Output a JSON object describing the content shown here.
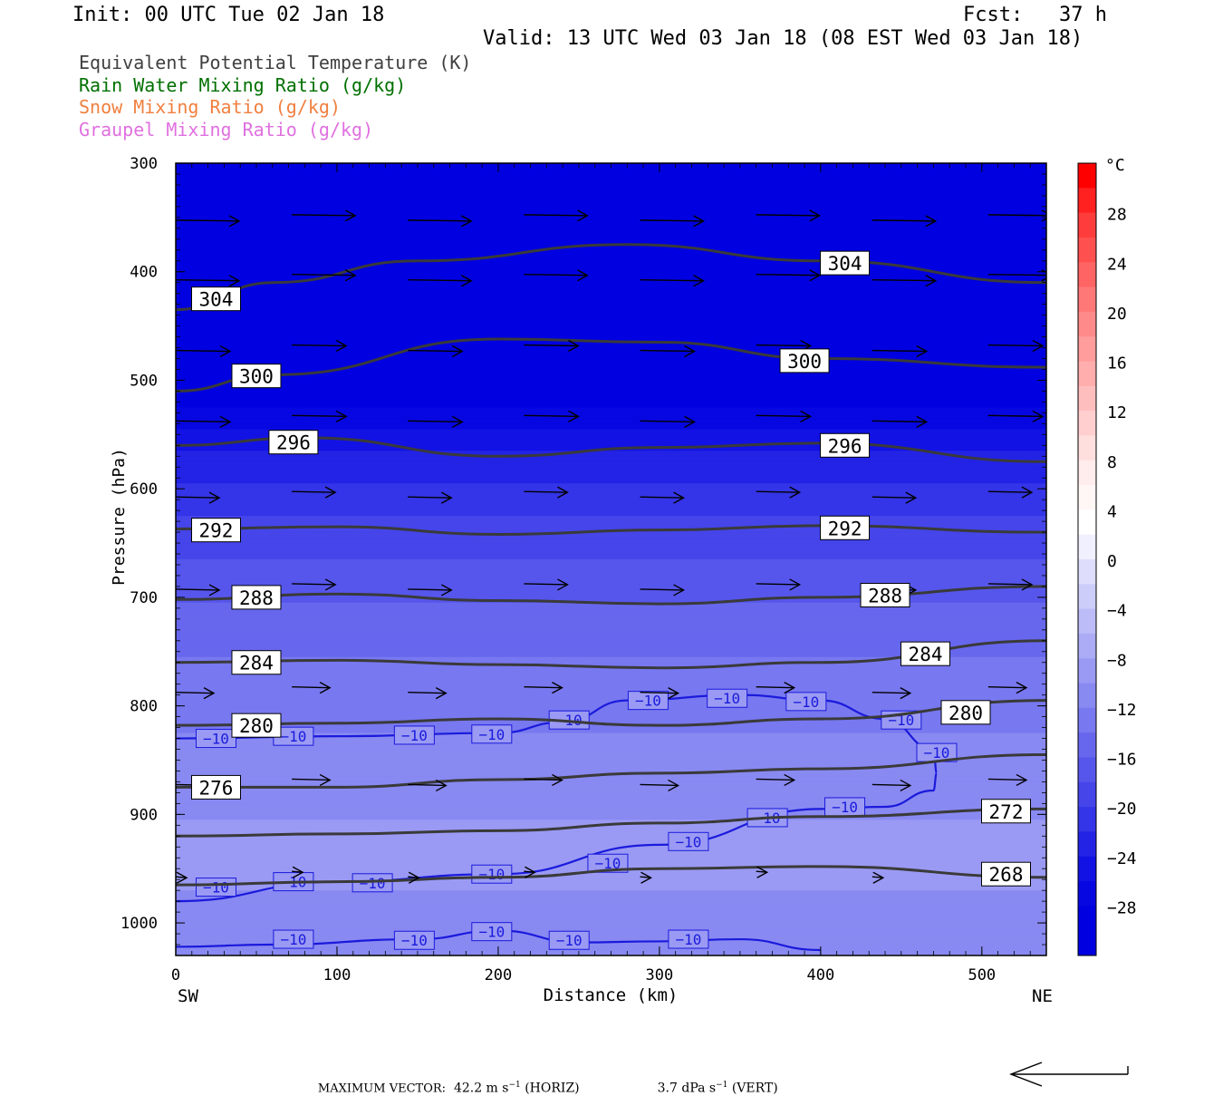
{
  "header": {
    "init": "Init: 00 UTC Tue 02 Jan 18",
    "fcst": "Fcst:   37 h",
    "valid": "Valid: 13 UTC Wed 03 Jan 18 (08 EST Wed 03 Jan 18)"
  },
  "legend": [
    {
      "label": "Equivalent Potential Temperature (K)",
      "color": "#404040"
    },
    {
      "label": "Rain Water Mixing Ratio (g/kg)",
      "color": "#007000"
    },
    {
      "label": "Snow Mixing Ratio (g/kg)",
      "color": "#f08040"
    },
    {
      "label": "Graupel Mixing Ratio (g/kg)",
      "color": "#e070e0"
    }
  ],
  "chart_data": {
    "type": "cross-section",
    "xlabel": "Distance (km)",
    "ylabel": "Pressure (hPa)",
    "xlim": [
      0,
      540
    ],
    "ylim": [
      1030,
      300
    ],
    "x_ticks": [
      "0",
      "100",
      "200",
      "300",
      "400",
      "500"
    ],
    "y_ticks": [
      "300",
      "400",
      "500",
      "600",
      "700",
      "800",
      "900",
      "1000"
    ],
    "x_tick_values": [
      0,
      100,
      200,
      300,
      400,
      500
    ],
    "y_tick_values": [
      300,
      400,
      500,
      600,
      700,
      800,
      900,
      1000
    ],
    "endpoint_left": "SW",
    "endpoint_right": "NE",
    "colorbar": {
      "unit": "°C",
      "tick_labels": [
        "28",
        "24",
        "20",
        "16",
        "12",
        "8",
        "4",
        "0",
        "−4",
        "−8",
        "−12",
        "−16",
        "−20",
        "−24",
        "−28"
      ],
      "tick_values": [
        28,
        24,
        20,
        16,
        12,
        8,
        4,
        0,
        -4,
        -8,
        -12,
        -16,
        -20,
        -24,
        -28
      ],
      "levels": [
        32,
        30,
        28,
        26,
        24,
        22,
        20,
        18,
        16,
        14,
        12,
        10,
        8,
        6,
        4,
        2,
        0,
        -2,
        -4,
        -6,
        -8,
        -10,
        -12,
        -14,
        -16,
        -18,
        -20,
        -22,
        -24,
        -26,
        -28,
        -30,
        -32
      ],
      "colors": [
        "#ff0000",
        "#ff2020",
        "#ff3c3c",
        "#ff5050",
        "#ff6464",
        "#ff7878",
        "#ff8a8a",
        "#ff9c9c",
        "#ffadad",
        "#ffbebe",
        "#ffcfcf",
        "#ffdede",
        "#ffecec",
        "#fff6f6",
        "#ffffff",
        "#f0f0ff",
        "#dedefc",
        "#cdcdfa",
        "#bcbcf8",
        "#ababf6",
        "#9a9af4",
        "#8989f2",
        "#7878f0",
        "#6767ee",
        "#5656ec",
        "#4545ea",
        "#3434e8",
        "#2323e6",
        "#1212e4",
        "#0707e2",
        "#0000e0",
        "#0000e0"
      ]
    },
    "temperature_fill": [
      {
        "p": 300,
        "t": -32
      },
      {
        "p": 500,
        "t": -30
      },
      {
        "p": 560,
        "t": -24
      },
      {
        "p": 620,
        "t": -20
      },
      {
        "p": 700,
        "t": -16
      },
      {
        "p": 780,
        "t": -13
      },
      {
        "p": 860,
        "t": -11
      },
      {
        "p": 940,
        "t": -9
      },
      {
        "p": 1030,
        "t": -12
      }
    ],
    "theta_e_contours": [
      {
        "label": "304",
        "x": [
          0,
          60,
          150,
          280,
          400,
          540
        ],
        "p": [
          435,
          410,
          390,
          375,
          390,
          410
        ],
        "labels_at": [
          {
            "x": 25,
            "p": 425
          },
          {
            "x": 415,
            "p": 392
          }
        ]
      },
      {
        "label": "300",
        "x": [
          0,
          60,
          200,
          300,
          400,
          540
        ],
        "p": [
          510,
          495,
          462,
          465,
          480,
          488
        ],
        "labels_at": [
          {
            "x": 50,
            "p": 496
          },
          {
            "x": 390,
            "p": 482
          }
        ]
      },
      {
        "label": "296",
        "x": [
          0,
          80,
          200,
          300,
          400,
          540
        ],
        "p": [
          560,
          553,
          570,
          562,
          558,
          575
        ],
        "labels_at": [
          {
            "x": 73,
            "p": 557
          },
          {
            "x": 415,
            "p": 560
          }
        ]
      },
      {
        "label": "292",
        "x": [
          0,
          100,
          200,
          300,
          400,
          540
        ],
        "p": [
          637,
          635,
          642,
          638,
          634,
          640
        ],
        "labels_at": [
          {
            "x": 25,
            "p": 638
          },
          {
            "x": 415,
            "p": 636
          }
        ]
      },
      {
        "label": "288",
        "x": [
          0,
          100,
          200,
          300,
          400,
          540
        ],
        "p": [
          702,
          697,
          703,
          706,
          700,
          690
        ],
        "labels_at": [
          {
            "x": 50,
            "p": 700
          },
          {
            "x": 440,
            "p": 698
          }
        ]
      },
      {
        "label": "284",
        "x": [
          0,
          100,
          200,
          300,
          400,
          540
        ],
        "p": [
          760,
          758,
          762,
          765,
          760,
          740
        ],
        "labels_at": [
          {
            "x": 50,
            "p": 760
          },
          {
            "x": 465,
            "p": 752
          }
        ]
      },
      {
        "label": "280",
        "x": [
          0,
          100,
          200,
          300,
          400,
          540
        ],
        "p": [
          818,
          816,
          812,
          818,
          812,
          795
        ],
        "labels_at": [
          {
            "x": 50,
            "p": 818
          },
          {
            "x": 490,
            "p": 806
          }
        ]
      },
      {
        "label": "276",
        "x": [
          0,
          100,
          200,
          300,
          400,
          540
        ],
        "p": [
          875,
          875,
          868,
          862,
          858,
          845
        ],
        "labels_at": [
          {
            "x": 25,
            "p": 875
          }
        ]
      },
      {
        "label": "272",
        "x": [
          0,
          100,
          200,
          300,
          400,
          540
        ],
        "p": [
          920,
          918,
          915,
          908,
          902,
          895
        ],
        "labels_at": [
          {
            "x": 515,
            "p": 897
          }
        ]
      },
      {
        "label": "268",
        "x": [
          0,
          100,
          200,
          300,
          400,
          540
        ],
        "p": [
          965,
          962,
          958,
          950,
          948,
          958
        ],
        "labels_at": [
          {
            "x": 515,
            "p": 955
          }
        ]
      }
    ],
    "isotherm_minus10": [
      {
        "x": [
          0,
          100,
          200,
          240,
          280,
          350,
          400,
          440,
          470,
          472
        ],
        "p": [
          830,
          828,
          825,
          815,
          795,
          790,
          795,
          812,
          840,
          862
        ],
        "labels": [
          {
            "x": 25,
            "p": 830
          },
          {
            "x": 73,
            "p": 828
          },
          {
            "x": 148,
            "p": 827
          },
          {
            "x": 196,
            "p": 826
          },
          {
            "x": 244,
            "p": 813
          },
          {
            "x": 293,
            "p": 795
          },
          {
            "x": 342,
            "p": 793
          },
          {
            "x": 391,
            "p": 796
          },
          {
            "x": 450,
            "p": 813
          },
          {
            "x": 472,
            "p": 843
          }
        ]
      },
      {
        "x": [
          0,
          100,
          200,
          300,
          400,
          440,
          470,
          472
        ],
        "p": [
          980,
          962,
          955,
          928,
          895,
          893,
          878,
          862
        ],
        "labels": [
          {
            "x": 25,
            "p": 967
          },
          {
            "x": 73,
            "p": 962
          },
          {
            "x": 122,
            "p": 963
          },
          {
            "x": 196,
            "p": 955
          },
          {
            "x": 268,
            "p": 945
          },
          {
            "x": 318,
            "p": 925
          },
          {
            "x": 367,
            "p": 903
          },
          {
            "x": 415,
            "p": 893
          }
        ]
      },
      {
        "x": [
          0,
          60,
          150,
          200,
          250,
          300,
          350,
          400
        ],
        "p": [
          1022,
          1020,
          1015,
          1007,
          1018,
          1017,
          1015,
          1025
        ],
        "labels": [
          {
            "x": 73,
            "p": 1015
          },
          {
            "x": 148,
            "p": 1016
          },
          {
            "x": 196,
            "p": 1008
          },
          {
            "x": 244,
            "p": 1016
          },
          {
            "x": 318,
            "p": 1015
          }
        ]
      }
    ],
    "wind_vectors_pressure_levels": [
      350,
      405,
      470,
      535,
      605,
      690,
      785,
      870,
      955
    ],
    "vector_caption": {
      "label": "MAXIMUM VECTOR:",
      "horiz": "42.2 m s",
      "horiz_unit": "(HORIZ)",
      "vert": "3.7 dPa s",
      "vert_unit": "(VERT)",
      "exponent": "−1"
    }
  }
}
